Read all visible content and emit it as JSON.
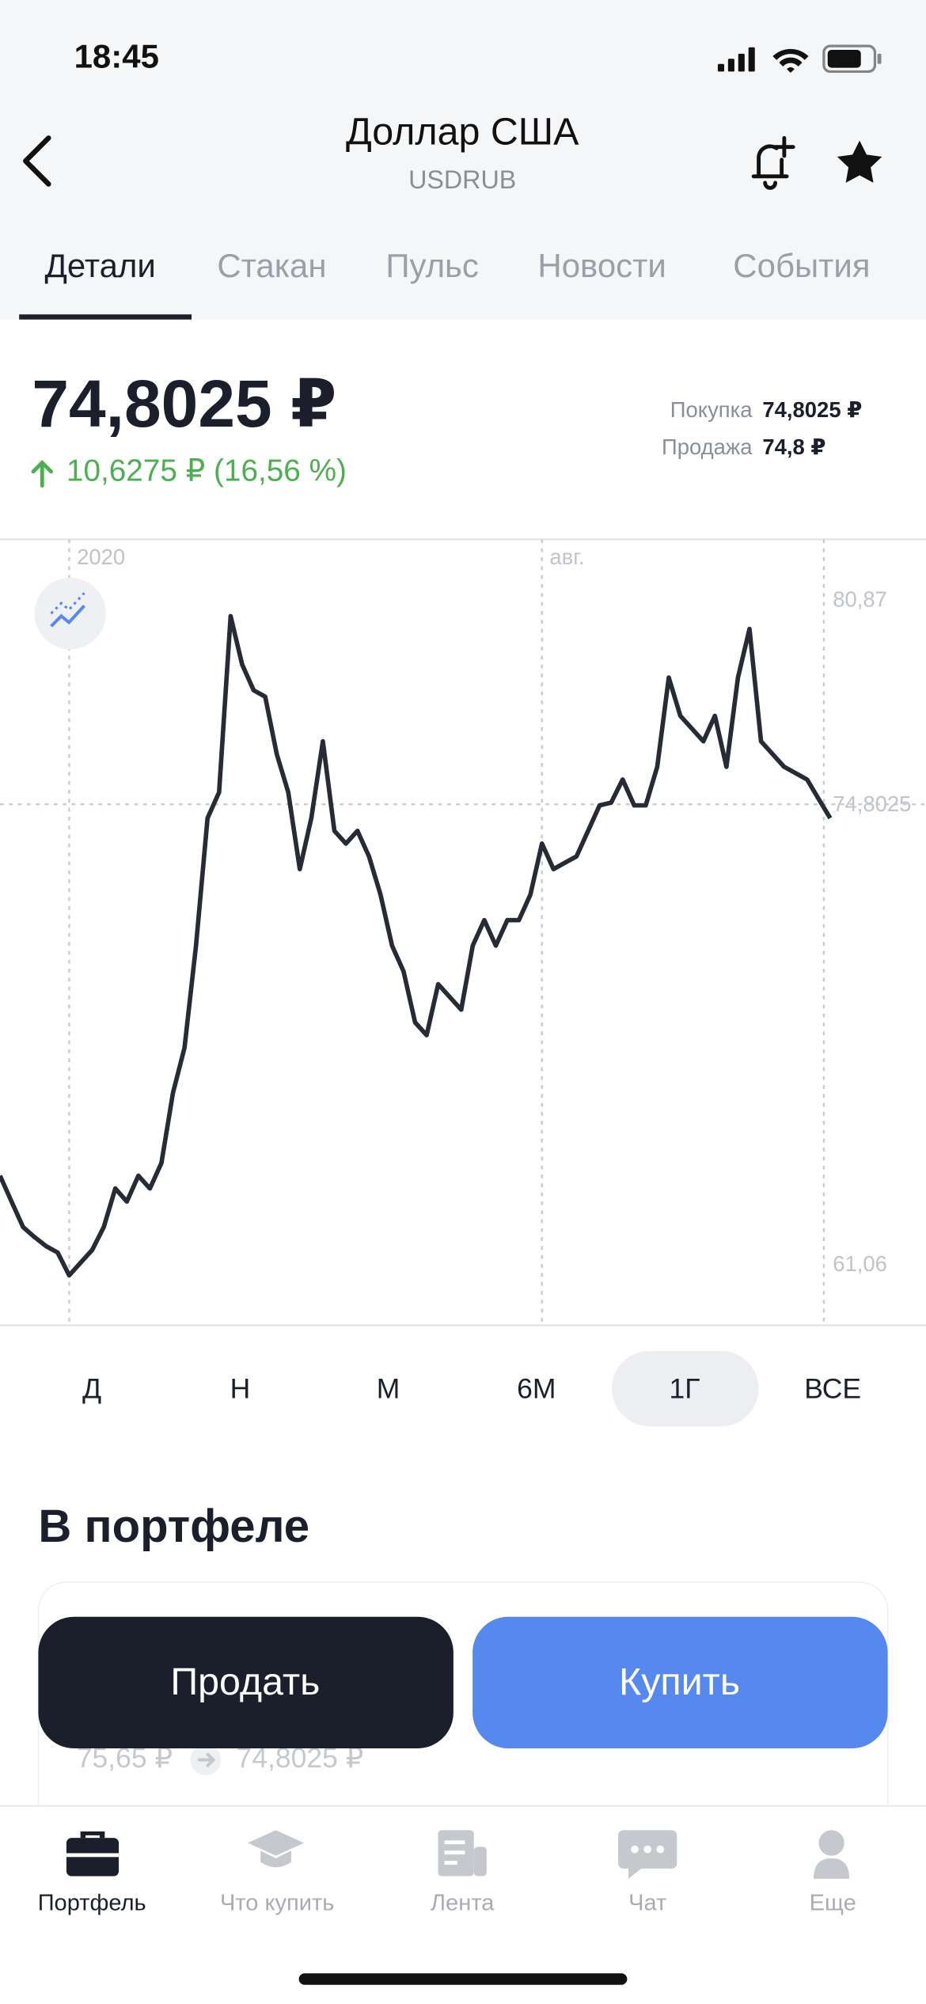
{
  "status_bar": {
    "time": "18:45"
  },
  "header": {
    "title": "Доллар США",
    "subtitle": "USDRUB"
  },
  "tabs": [
    {
      "label": "Детали",
      "selected": true
    },
    {
      "label": "Стакан"
    },
    {
      "label": "Пульс"
    },
    {
      "label": "Новости"
    },
    {
      "label": "События"
    }
  ],
  "quote": {
    "price": "74,8025 ₽",
    "change": "10,6275 ₽ (16,56 %)",
    "buy_label": "Покупка",
    "buy_value": "74,8025 ₽",
    "sell_label": "Продажа",
    "sell_value": "74,8 ₽"
  },
  "chart_data": {
    "type": "line",
    "categories": [
      null,
      null,
      null,
      null,
      null,
      null,
      "2020",
      null,
      null,
      null,
      null,
      null,
      null,
      null,
      null,
      null,
      null,
      null,
      null,
      null,
      null,
      null,
      null,
      null,
      null,
      null,
      null,
      null,
      null,
      null,
      null,
      null,
      null,
      null,
      null,
      null,
      null,
      null,
      null,
      null,
      null,
      null,
      null,
      null,
      null,
      null,
      null,
      "авг.",
      null,
      null,
      null,
      null,
      null,
      null,
      null,
      null,
      null,
      null,
      null,
      null,
      null,
      null,
      null,
      null,
      null,
      null,
      null,
      null,
      null,
      null,
      null,
      null,
      null
    ],
    "series": [
      {
        "color": "#262b36",
        "values": [
          63.73,
          62.96,
          62.2,
          61.9,
          61.63,
          61.44,
          60.76,
          61.14,
          61.52,
          62.2,
          63.35,
          62.96,
          63.73,
          63.35,
          64.11,
          66.2,
          67.54,
          70.59,
          74.39,
          75.16,
          80.41,
          78.97,
          78.2,
          78.01,
          76.3,
          75.16,
          72.87,
          74.39,
          76.68,
          74.01,
          73.63,
          74.01,
          73.25,
          72.11,
          70.59,
          69.82,
          68.3,
          67.92,
          69.44,
          69.06,
          68.68,
          70.59,
          71.35,
          70.59,
          71.35,
          71.35,
          72.11,
          73.63,
          72.87,
          73.06,
          73.25,
          74.01,
          74.77,
          74.85,
          75.54,
          74.77,
          74.77,
          75.92,
          78.58,
          77.44,
          77.06,
          76.68,
          77.44,
          75.92,
          78.58,
          80.03,
          76.68,
          76.3,
          75.92,
          75.73,
          75.54,
          74.96,
          74.39
        ]
      }
    ],
    "ylim": [
      59.27,
      82.7
    ],
    "yticks": [
      {
        "value": 80.87,
        "label": "80,87"
      },
      {
        "value": 61.06,
        "label": "61,06"
      }
    ],
    "last_price": {
      "value": 74.8025,
      "label": "74,8025"
    }
  },
  "periods": [
    {
      "label": "Д"
    },
    {
      "label": "Н"
    },
    {
      "label": "М"
    },
    {
      "label": "6М"
    },
    {
      "label": "1Г",
      "selected": true
    },
    {
      "label": "ВСЕ"
    }
  ],
  "portfolio": {
    "title": "В портфеле",
    "from": "75,65 ₽",
    "to": "74,8025 ₽"
  },
  "actions": {
    "sell": "Продать",
    "buy": "Купить"
  },
  "nav": [
    {
      "label": "Портфель",
      "selected": true
    },
    {
      "label": "Что купить"
    },
    {
      "label": "Лента"
    },
    {
      "label": "Чат"
    },
    {
      "label": "Еще"
    }
  ]
}
